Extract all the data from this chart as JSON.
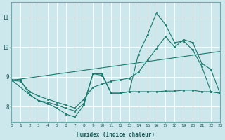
{
  "xlabel": "Humidex (Indice chaleur)",
  "xlim": [
    0,
    23
  ],
  "ylim": [
    7.5,
    11.5
  ],
  "yticks": [
    8,
    9,
    10,
    11
  ],
  "xticks": [
    0,
    1,
    2,
    3,
    4,
    5,
    6,
    7,
    8,
    9,
    10,
    11,
    12,
    13,
    14,
    15,
    16,
    17,
    18,
    19,
    20,
    21,
    22,
    23
  ],
  "bg_color": "#cce8ec",
  "line_color": "#1a7a6e",
  "grid_color": "#ffffff",
  "line0_x": [
    0,
    1,
    2,
    3,
    4,
    5,
    6,
    7,
    8,
    9,
    10,
    11,
    12,
    13,
    14,
    15,
    16,
    17,
    18,
    19,
    20,
    21,
    22,
    23
  ],
  "line0_y": [
    8.9,
    8.9,
    8.4,
    8.2,
    8.1,
    7.95,
    7.75,
    7.65,
    8.05,
    9.1,
    9.1,
    8.45,
    8.45,
    8.5,
    9.75,
    10.4,
    11.15,
    10.75,
    10.15,
    10.2,
    9.9,
    9.35,
    8.5,
    8.45
  ],
  "line1_x": [
    0,
    2,
    3,
    4,
    5,
    6,
    7,
    8,
    9,
    10,
    11,
    12,
    13,
    14,
    15,
    16,
    17,
    18,
    19,
    20,
    21,
    22,
    23
  ],
  "line1_y": [
    8.9,
    8.4,
    8.2,
    8.15,
    8.05,
    7.95,
    7.85,
    8.1,
    9.1,
    9.05,
    8.45,
    8.45,
    8.5,
    8.5,
    8.5,
    8.5,
    8.52,
    8.52,
    8.55,
    8.55,
    8.5,
    8.5,
    8.45
  ],
  "line2_x": [
    0,
    1,
    2,
    3,
    4,
    5,
    6,
    7,
    8,
    9,
    10,
    11,
    12,
    13,
    14,
    15,
    16,
    17,
    18,
    19,
    20,
    21,
    22,
    23
  ],
  "line2_y": [
    8.88,
    8.85,
    8.5,
    8.35,
    8.25,
    8.15,
    8.05,
    7.95,
    8.25,
    8.65,
    8.75,
    8.85,
    8.9,
    8.95,
    9.15,
    9.55,
    9.95,
    10.35,
    10.0,
    10.25,
    10.15,
    9.45,
    9.25,
    8.45
  ],
  "line3_x": [
    0,
    23
  ],
  "line3_y": [
    8.88,
    9.85
  ],
  "figsize": [
    3.2,
    2.0
  ],
  "dpi": 100
}
